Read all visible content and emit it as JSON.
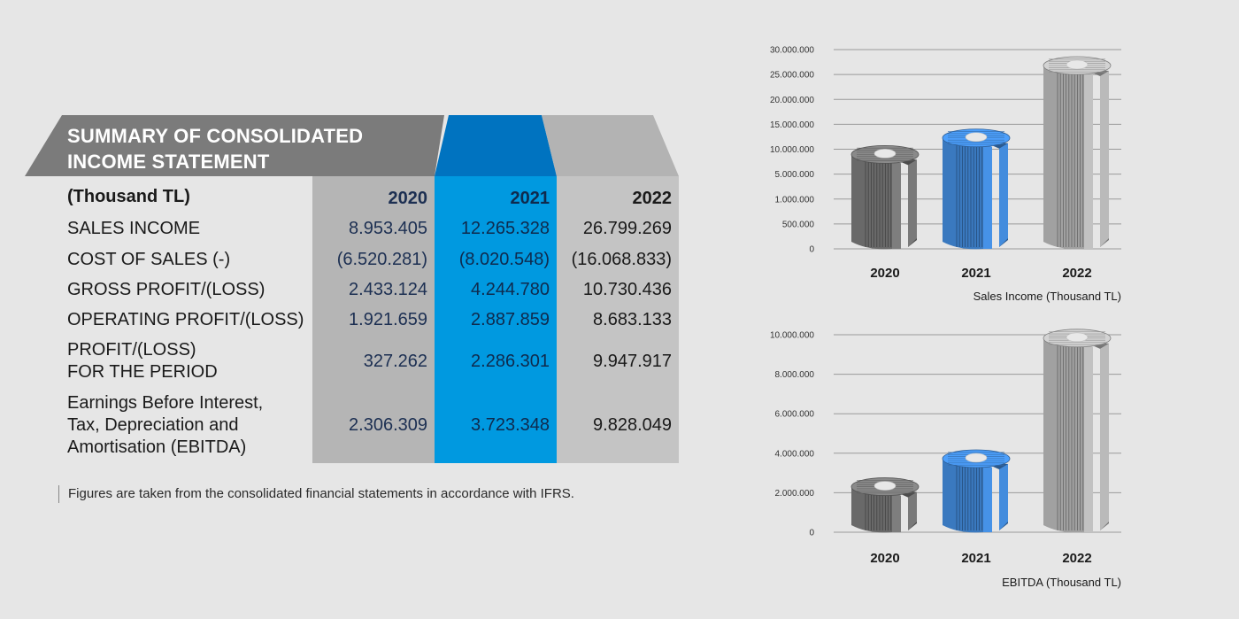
{
  "table": {
    "title_line1": "SUMMARY OF CONSOLIDATED",
    "title_line2": "INCOME STATEMENT",
    "unit_label": "(Thousand TL)",
    "years": [
      "2020",
      "2021",
      "2022"
    ],
    "rows": [
      {
        "label": "SALES INCOME",
        "values": [
          "8.953.405",
          "12.265.328",
          "26.799.269"
        ]
      },
      {
        "label": "COST OF SALES (-)",
        "values": [
          "(6.520.281)",
          "(8.020.548)",
          "(16.068.833)"
        ]
      },
      {
        "label": "GROSS PROFIT/(LOSS)",
        "values": [
          "2.433.124",
          "4.244.780",
          "10.730.436"
        ]
      },
      {
        "label": "OPERATING PROFIT/(LOSS)",
        "values": [
          "1.921.659",
          "2.887.859",
          "8.683.133"
        ]
      },
      {
        "label_line1": "PROFIT/(LOSS)",
        "label_line2": "FOR THE PERIOD",
        "values": [
          "327.262",
          "2.286.301",
          "9.947.917"
        ]
      },
      {
        "label_line1": "Earnings Before Interest,",
        "label_line2": "Tax, Depreciation and",
        "label_line3": "Amortisation (EBITDA)",
        "values": [
          "2.306.309",
          "3.723.348",
          "9.828.049"
        ]
      }
    ],
    "note": "Figures are taken from the consolidated financial statements in accordance with IFRS."
  },
  "colors": {
    "banner_dark": "#7b7b7b",
    "banner_light": "#b3b3b3",
    "highlight_blue": "#0099e0",
    "highlight_blue_dark": "#0073c0",
    "pillar_2020": "#6e6e6e",
    "pillar_2021": "#3d7fc9",
    "pillar_2022": "#a9a9a9"
  },
  "chart_data": [
    {
      "type": "bar",
      "title": "Sales Income (Thousand TL)",
      "categories": [
        "2020",
        "2021",
        "2022"
      ],
      "values": [
        8953405,
        12265328,
        26799269
      ],
      "y_ticks": [
        "30.000.000",
        "25.000.000",
        "20.000.000",
        "15.000.000",
        "10.000.000",
        "5.000.000",
        "1.000.000",
        "500.000",
        "0"
      ],
      "grid": true
    },
    {
      "type": "bar",
      "title": "EBITDA (Thousand TL)",
      "categories": [
        "2020",
        "2021",
        "2022"
      ],
      "values": [
        2306309,
        3723348,
        9828049
      ],
      "y_ticks": [
        "10.000.000",
        "8.000.000",
        "6.000.000",
        "4.000.000",
        "2.000.000",
        "0"
      ],
      "ylim": [
        0,
        10000000
      ],
      "grid": true
    }
  ]
}
